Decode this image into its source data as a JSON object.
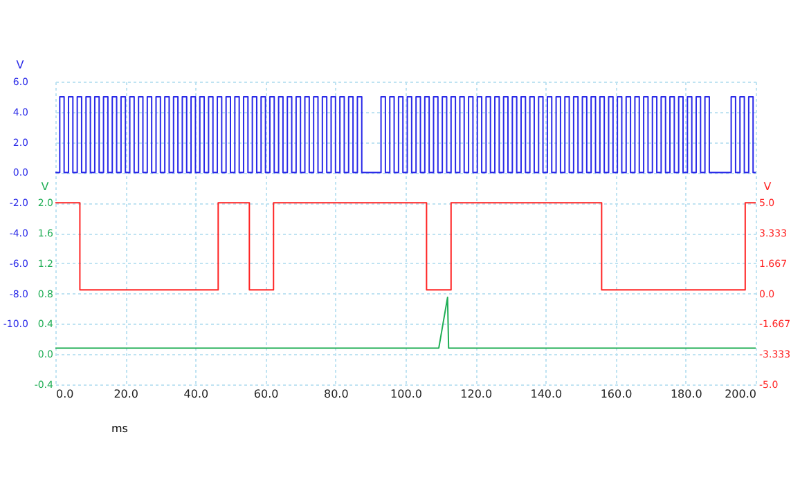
{
  "chart_data": {
    "type": "line",
    "xlabel": "ms",
    "ylabel": "V",
    "y2label": "V",
    "y3label": "V",
    "xlim": [
      0,
      200
    ],
    "xticks": [
      {
        "value": 0,
        "label": "0.0"
      },
      {
        "value": 20,
        "label": "20.0"
      },
      {
        "value": 40,
        "label": "40.0"
      },
      {
        "value": 60,
        "label": "60.0"
      },
      {
        "value": 80,
        "label": "80.0"
      },
      {
        "value": 100,
        "label": "100.0"
      },
      {
        "value": 120,
        "label": "120.0"
      },
      {
        "value": 140,
        "label": "140.0"
      },
      {
        "value": 160,
        "label": "160.0"
      },
      {
        "value": 180,
        "label": "180.0"
      },
      {
        "value": 200,
        "label": "200.0"
      }
    ],
    "ylim": [
      -14,
      6
    ],
    "yticks": [
      {
        "value": 6,
        "label": "6.0"
      },
      {
        "value": 4,
        "label": "4.0"
      },
      {
        "value": 2,
        "label": "2.0"
      },
      {
        "value": 0,
        "label": "0.0"
      },
      {
        "value": -2,
        "label": "-2.0"
      },
      {
        "value": -4,
        "label": "-4.0"
      },
      {
        "value": -6,
        "label": "-6.0"
      },
      {
        "value": -8,
        "label": "-8.0"
      },
      {
        "value": -10,
        "label": "-10.0"
      }
    ],
    "y2lim": [
      -0.4,
      3.6
    ],
    "y2ticks": [
      {
        "value": 2,
        "label": "2.0"
      },
      1.6,
      1.2,
      0.8,
      0.4,
      {
        "value": 0,
        "label": "0.0"
      },
      -0.4
    ],
    "y3lim": [
      -5,
      11.667
    ],
    "y3ticks": [
      {
        "value": 5,
        "label": "5.0"
      },
      3.333,
      1.667,
      {
        "value": 0,
        "label": "0.0"
      },
      -1.667,
      -3.333,
      {
        "value": -5,
        "label": "-5.0"
      }
    ],
    "grid": true,
    "series": [
      {
        "type": "step",
        "color": "#2a2ae8",
        "x": [
          0,
          1.25,
          2.5,
          3.75,
          5,
          6.25,
          7.5,
          8.75,
          10,
          11.25,
          12.5,
          13.75,
          15,
          16.25,
          17.5,
          18.75,
          20,
          21.25,
          22.5,
          23.75,
          25,
          26.25,
          27.5,
          28.75,
          30,
          31.25,
          32.5,
          33.75,
          35,
          36.25,
          37.5,
          38.75,
          40,
          41.25,
          42.5,
          43.75,
          45,
          46.25,
          47.5,
          48.75,
          50,
          51.25,
          52.5,
          53.75,
          55,
          56.25,
          57.5,
          58.75,
          60,
          61.25,
          62.5,
          63.75,
          65,
          66.25,
          67.5,
          68.75,
          70,
          71.25,
          72.5,
          73.75,
          75,
          76.25,
          77.5,
          78.75,
          80,
          81.25,
          82.5,
          83.75,
          85,
          86.25,
          87.5,
          93,
          94.25,
          95.5,
          96.75,
          98,
          99.25,
          100.5,
          101.75,
          103,
          104.25,
          105.5,
          106.75,
          108,
          109.25,
          110.5,
          111.75,
          113,
          114.25,
          115.5,
          116.75,
          118,
          119.25,
          120.5,
          121.75,
          123,
          124.25,
          125.5,
          126.75,
          128,
          129.25,
          130.5,
          131.75,
          133,
          134.25,
          135.5,
          136.75,
          138,
          139.25,
          140.5,
          141.75,
          143,
          144.25,
          145.5,
          146.75,
          148,
          149.25,
          150.5,
          151.75,
          153,
          154.25,
          155.5,
          156.75,
          158,
          159.25,
          160.5,
          161.75,
          163,
          164.25,
          165.5,
          166.75,
          168,
          169.25,
          170.5,
          171.75,
          173,
          174.25,
          175.5,
          176.75,
          178,
          179.25,
          180.5,
          181.75,
          183,
          184.25,
          185.5,
          186.75,
          193,
          194.25,
          195.5,
          196.75,
          198,
          199.25,
          200
        ],
        "values": [
          0,
          5,
          0,
          5,
          0,
          5,
          0,
          5,
          0,
          5,
          0,
          5,
          0,
          5,
          0,
          5,
          0,
          5,
          0,
          5,
          0,
          5,
          0,
          5,
          0,
          5,
          0,
          5,
          0,
          5,
          0,
          5,
          0,
          5,
          0,
          5,
          0,
          5,
          0,
          5,
          0,
          5,
          0,
          5,
          0,
          5,
          0,
          5,
          0,
          5,
          0,
          5,
          0,
          5,
          0,
          5,
          0,
          5,
          0,
          5,
          0,
          5,
          0,
          5,
          0,
          5,
          0,
          5,
          0,
          5,
          0,
          5,
          0,
          5,
          0,
          5,
          0,
          5,
          0,
          5,
          0,
          5,
          0,
          5,
          0,
          5,
          0,
          5,
          0,
          5,
          0,
          5,
          0,
          5,
          0,
          5,
          0,
          5,
          0,
          5,
          0,
          5,
          0,
          5,
          0,
          5,
          0,
          5,
          0,
          5,
          0,
          5,
          0,
          5,
          0,
          5,
          0,
          5,
          0,
          5,
          0,
          5,
          0,
          5,
          0,
          5,
          0,
          5,
          0,
          5,
          0,
          5,
          0,
          5,
          0,
          5,
          0,
          5,
          0,
          5,
          0,
          5,
          0,
          5,
          0,
          5,
          0,
          5,
          0,
          5,
          0,
          5,
          0,
          0
        ]
      },
      {
        "type": "line",
        "axis": "y2",
        "color": "#1fae55",
        "x": [
          0,
          109.5,
          112,
          112.3,
          200
        ],
        "values": [
          0.08,
          0.08,
          0.75,
          0.08,
          0.08
        ]
      },
      {
        "type": "step",
        "axis": "y3",
        "color": "#ff2424",
        "x": [
          0,
          7,
          46.5,
          55.4,
          62.3,
          106,
          113,
          156,
          197,
          200
        ],
        "values": [
          5,
          0.2,
          5,
          0.2,
          5,
          0.2,
          5,
          0.2,
          5,
          5
        ]
      }
    ]
  }
}
